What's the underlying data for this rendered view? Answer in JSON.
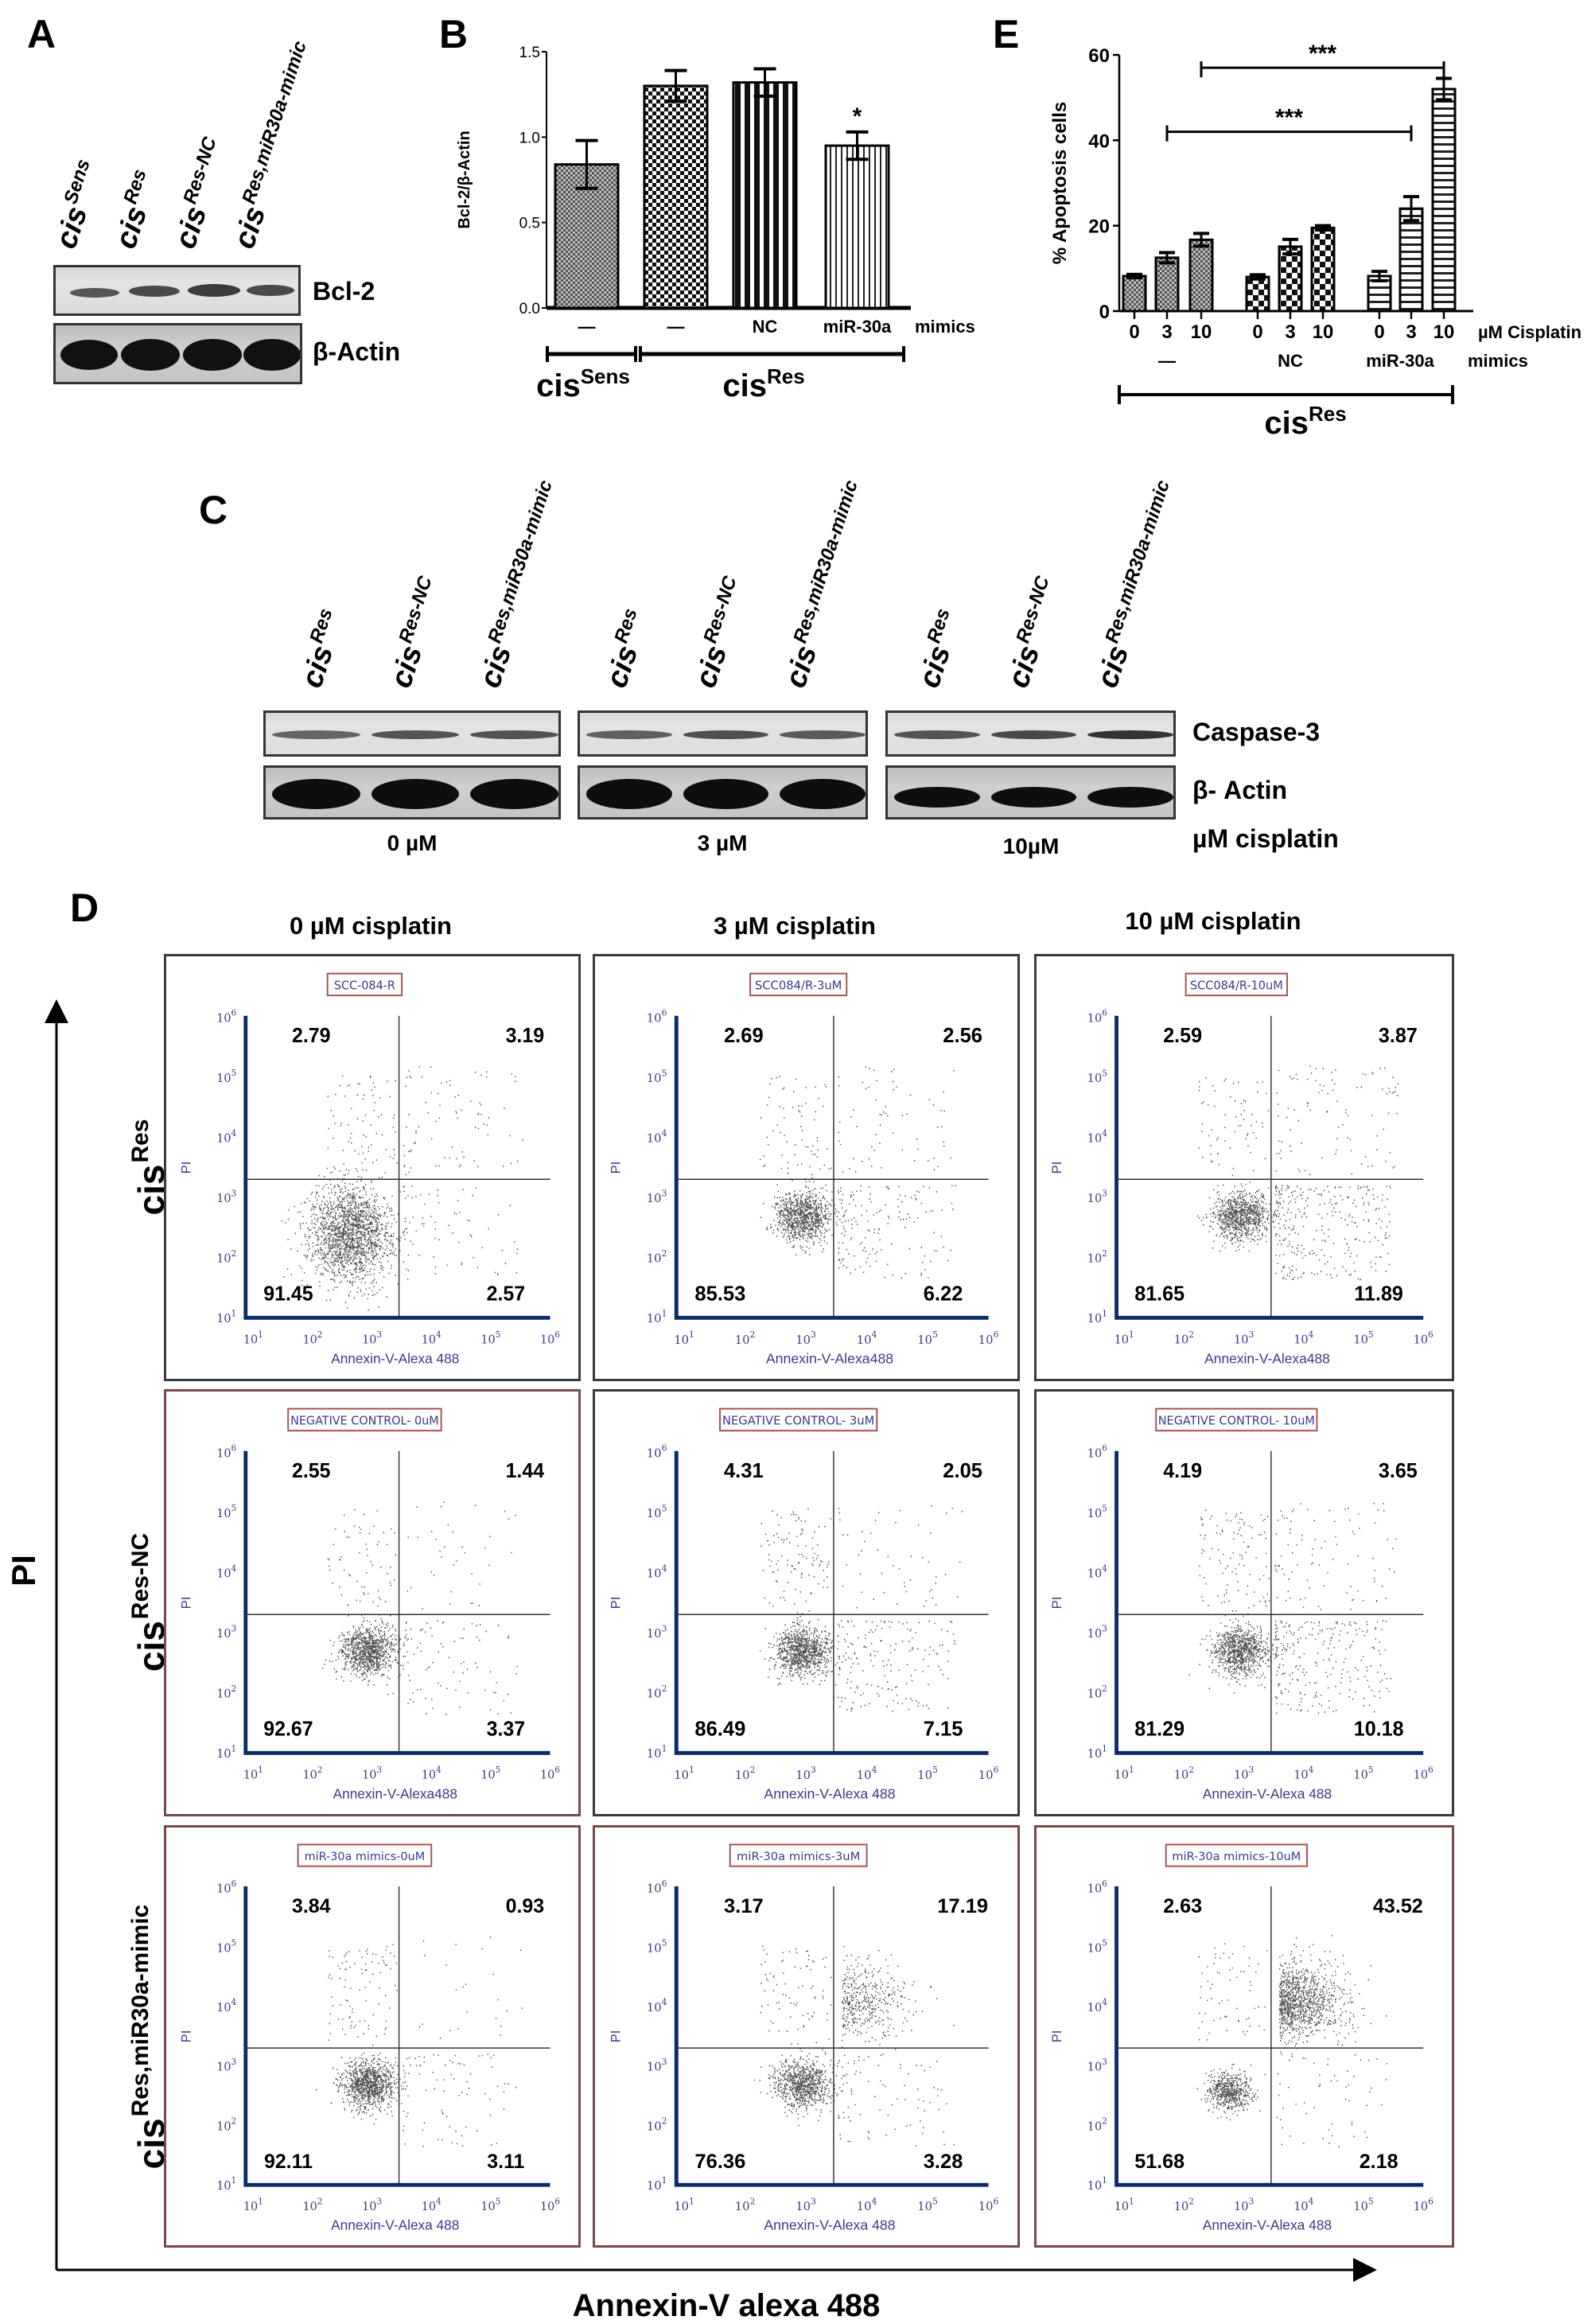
{
  "panel_labels": {
    "a": "A",
    "b": "B",
    "c": "C",
    "d": "D",
    "e": "E"
  },
  "panel_a": {
    "lanes": [
      {
        "base": "cis",
        "sup": "Sens"
      },
      {
        "base": "cis",
        "sup": "Res"
      },
      {
        "base": "cis",
        "sup": "Res-NC"
      },
      {
        "base": "cis",
        "sup": "Res,miR30a-mimic"
      }
    ],
    "bands": [
      "Bcl-2",
      "β-Actin"
    ]
  },
  "panel_c": {
    "lanes": [
      {
        "base": "cis",
        "sup": "Res"
      },
      {
        "base": "cis",
        "sup": "Res-NC"
      },
      {
        "base": "cis",
        "sup": "Res,miR30a-mimic"
      }
    ],
    "doses": [
      "0 µM",
      "3 µM",
      "10µM"
    ],
    "dose_unit": "µM cisplatin",
    "bands": [
      "Caspase-3",
      "β- Actin"
    ]
  },
  "panel_d": {
    "columns": [
      "0 µM cisplatin",
      "3 µM cisplatin",
      "10 µM cisplatin"
    ],
    "rows": [
      {
        "base": "cis",
        "sup": "Res"
      },
      {
        "base": "cis",
        "sup": "Res-NC"
      },
      {
        "base": "cis",
        "sup": "Res,miR30a-mimic"
      }
    ],
    "y_axis": "PI",
    "x_axis": "Annexin-V alexa 488",
    "tick_base": "10",
    "tick_exponents": [
      "1",
      "2",
      "3",
      "4",
      "5",
      "6"
    ],
    "plots": [
      [
        {
          "title": "SCC-084-R",
          "ul": "2.79",
          "ur": "3.19",
          "ll": "91.45",
          "lr": "2.57",
          "xlabel": "Annexin-V-Alexa 488",
          "ylabel": "PI"
        },
        {
          "title": "SCC084/R-3uM",
          "ul": "2.69",
          "ur": "2.56",
          "ll": "85.53",
          "lr": "6.22",
          "xlabel": "Annexin-V-Alexa488",
          "ylabel": "PI"
        },
        {
          "title": "SCC084/R-10uM",
          "ul": "2.59",
          "ur": "3.87",
          "ll": "81.65",
          "lr": "11.89",
          "xlabel": "Annexin-V-Alexa488",
          "ylabel": "PI"
        }
      ],
      [
        {
          "title": "NEGATIVE CONTROL- 0uM",
          "ul": "2.55",
          "ur": "1.44",
          "ll": "92.67",
          "lr": "3.37",
          "xlabel": "Annexin-V-Alexa488",
          "ylabel": "PI"
        },
        {
          "title": "NEGATIVE CONTROL- 3uM",
          "ul": "4.31",
          "ur": "2.05",
          "ll": "86.49",
          "lr": "7.15",
          "xlabel": "Annexin-V-Alexa 488",
          "ylabel": "PI"
        },
        {
          "title": "NEGATIVE CONTROL- 10uM",
          "ul": "4.19",
          "ur": "3.65",
          "ll": "81.29",
          "lr": "10.18",
          "xlabel": "Annexin-V-Alexa 488",
          "ylabel": "PI"
        }
      ],
      [
        {
          "title": "miR-30a mimics-0uM",
          "ul": "3.84",
          "ur": "0.93",
          "ll": "92.11",
          "lr": "3.11",
          "xlabel": "Annexin-V-Alexa 488",
          "ylabel": "PI"
        },
        {
          "title": "miR-30a mimics-3uM",
          "ul": "3.17",
          "ur": "17.19",
          "ll": "76.36",
          "lr": "3.28",
          "xlabel": "Annexin-V-Alexa 488",
          "ylabel": "PI"
        },
        {
          "title": "miR-30a mimics-10uM",
          "ul": "2.63",
          "ur": "43.52",
          "ll": "51.68",
          "lr": "2.18",
          "xlabel": "Annexin-V-Alexa 488",
          "ylabel": "PI"
        }
      ]
    ]
  },
  "chart_data": [
    {
      "panel": "B",
      "type": "bar",
      "ylabel": "Bcl-2/β-Actin",
      "ylim": [
        0,
        1.5
      ],
      "yticks": [
        "0.0",
        "0.5",
        "1.0",
        "1.5"
      ],
      "categories": [
        "—",
        "—",
        "NC",
        "miR-30a"
      ],
      "category_suffix": "mimics",
      "values": [
        0.84,
        1.3,
        1.32,
        0.95
      ],
      "errors": [
        0.14,
        0.09,
        0.08,
        0.08
      ],
      "significance": [
        "",
        "",
        "",
        "*"
      ],
      "groups": [
        {
          "base": "cis",
          "sup": "Sens",
          "bars": [
            0,
            0
          ]
        },
        {
          "base": "cis",
          "sup": "Res",
          "bars": [
            1,
            3
          ]
        }
      ],
      "grid": false
    },
    {
      "panel": "E",
      "type": "bar",
      "ylabel": "% Apoptosis cells",
      "ylim": [
        0,
        60
      ],
      "yticks": [
        "0",
        "20",
        "40",
        "60"
      ],
      "categories": [
        "0",
        "3",
        "10",
        "0",
        "3",
        "10",
        "0",
        "3",
        "10"
      ],
      "category_unit": "µM Cisplatin",
      "treatments": [
        "—",
        "NC",
        "miR-30a"
      ],
      "treatment_suffix": "mimics",
      "values": [
        8.2,
        12.5,
        16.7,
        8.0,
        15.1,
        19.5,
        8.2,
        24.0,
        52.0
      ],
      "errors": [
        0.4,
        1.2,
        1.5,
        0.5,
        1.7,
        0.5,
        1.1,
        2.8,
        2.5
      ],
      "comparisons": [
        {
          "from": 2,
          "to": 8,
          "y": 57,
          "label": "***"
        },
        {
          "from": 1,
          "to": 7,
          "y": 42,
          "label": "***"
        }
      ],
      "group": {
        "base": "cis",
        "sup": "Res"
      },
      "grid": false
    }
  ]
}
